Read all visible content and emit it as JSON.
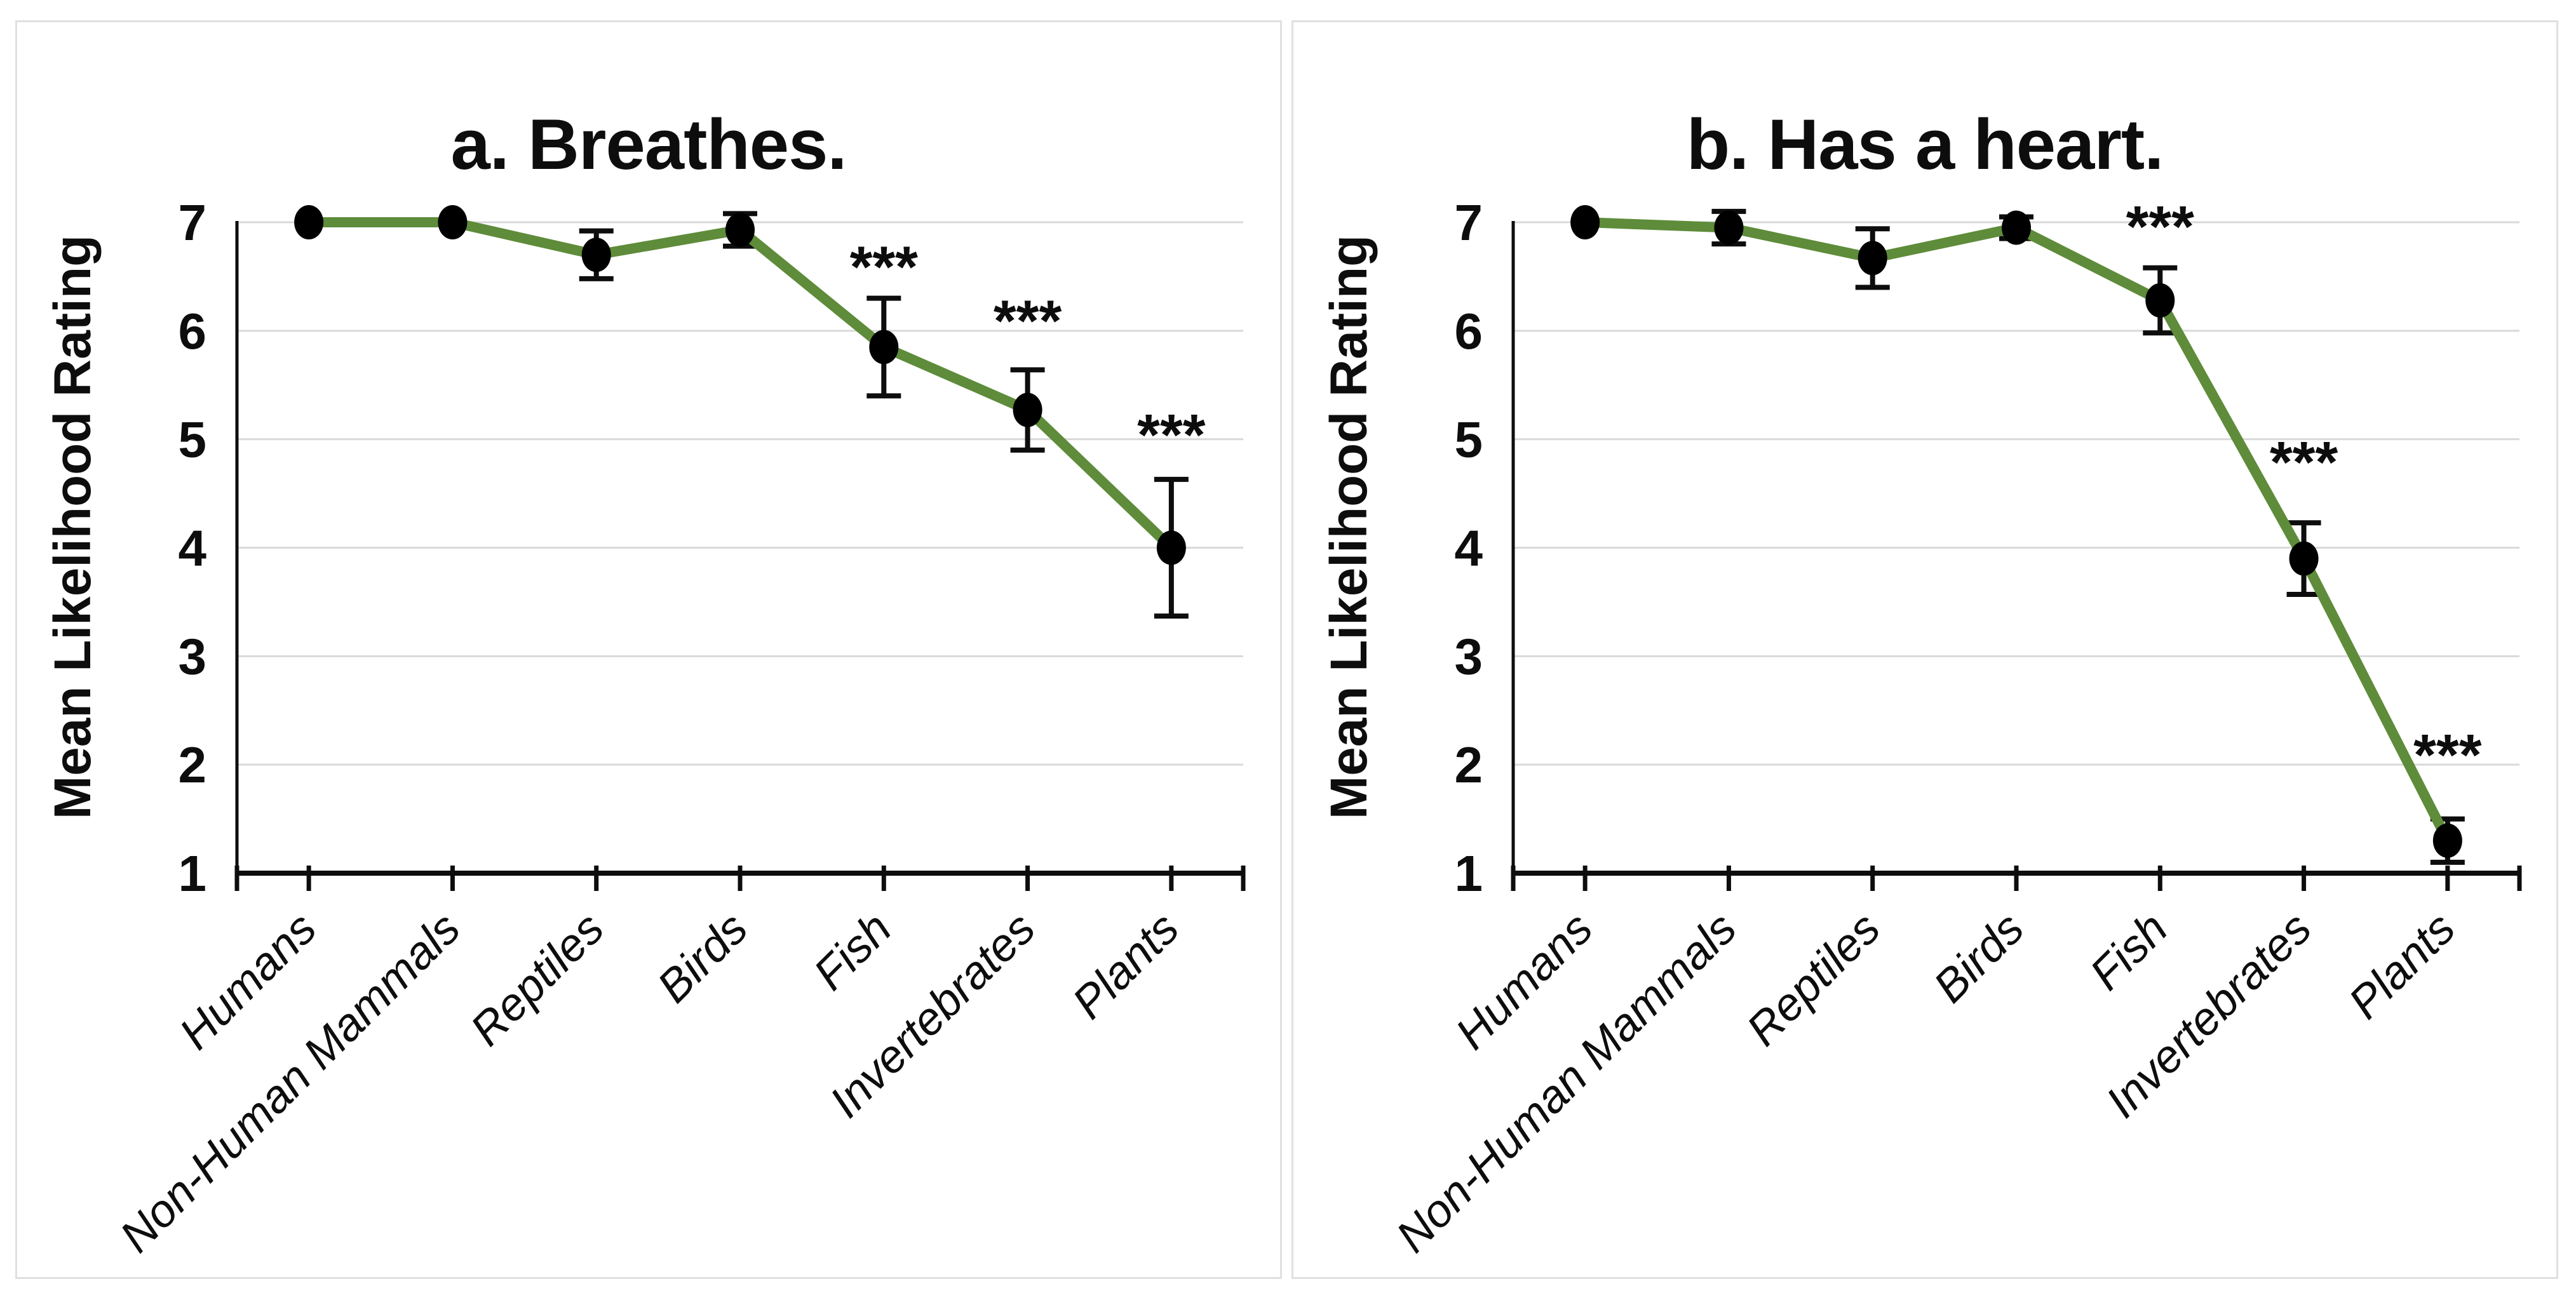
{
  "figure": {
    "background": "#ffffff",
    "panel_border_color": "#e0e0e0"
  },
  "colors": {
    "line_green": "#5e8c3a",
    "marker_black": "#000000",
    "error_bar_black": "#0d0d0d",
    "gridline_gray": "#d9d9d9",
    "axis_black": "#0d0d0d",
    "text_black": "#0d0d0d"
  },
  "chart_data": [
    {
      "type": "line",
      "title": "a. Breathes.",
      "xlabel": "",
      "ylabel": "Mean Likelihood Rating",
      "ylim": [
        1,
        7
      ],
      "yticks": [
        1,
        2,
        3,
        4,
        5,
        6,
        7
      ],
      "grid": true,
      "legend": "none",
      "categories": [
        "Humans",
        "Non-Human Mammals",
        "Reptiles",
        "Birds",
        "Fish",
        "Invertebrates",
        "Plants"
      ],
      "series": [
        {
          "name": "Mean Likelihood Rating",
          "values": [
            7.0,
            7.0,
            6.7,
            6.93,
            5.85,
            5.27,
            4.0
          ],
          "errors": [
            0,
            0,
            0.22,
            0.15,
            0.45,
            0.37,
            0.63
          ],
          "significance": [
            null,
            null,
            null,
            null,
            "***",
            "***",
            "***"
          ],
          "significance_y": [
            null,
            null,
            null,
            null,
            6.65,
            6.15,
            5.1
          ]
        }
      ]
    },
    {
      "type": "line",
      "title": "b. Has a heart.",
      "xlabel": "",
      "ylabel": "Mean Likelihood Rating",
      "ylim": [
        1,
        7
      ],
      "yticks": [
        1,
        2,
        3,
        4,
        5,
        6,
        7
      ],
      "grid": true,
      "legend": "none",
      "categories": [
        "Humans",
        "Non-Human Mammals",
        "Reptiles",
        "Birds",
        "Fish",
        "Invertebrates",
        "Plants"
      ],
      "series": [
        {
          "name": "Mean Likelihood Rating",
          "values": [
            7.0,
            6.95,
            6.67,
            6.95,
            6.28,
            3.9,
            1.3
          ],
          "errors": [
            0,
            0.15,
            0.27,
            0.1,
            0.3,
            0.33,
            0.2
          ],
          "significance": [
            null,
            null,
            null,
            null,
            "***",
            "***",
            "***"
          ],
          "significance_y": [
            null,
            null,
            null,
            null,
            7.02,
            4.85,
            2.15
          ]
        }
      ]
    }
  ]
}
